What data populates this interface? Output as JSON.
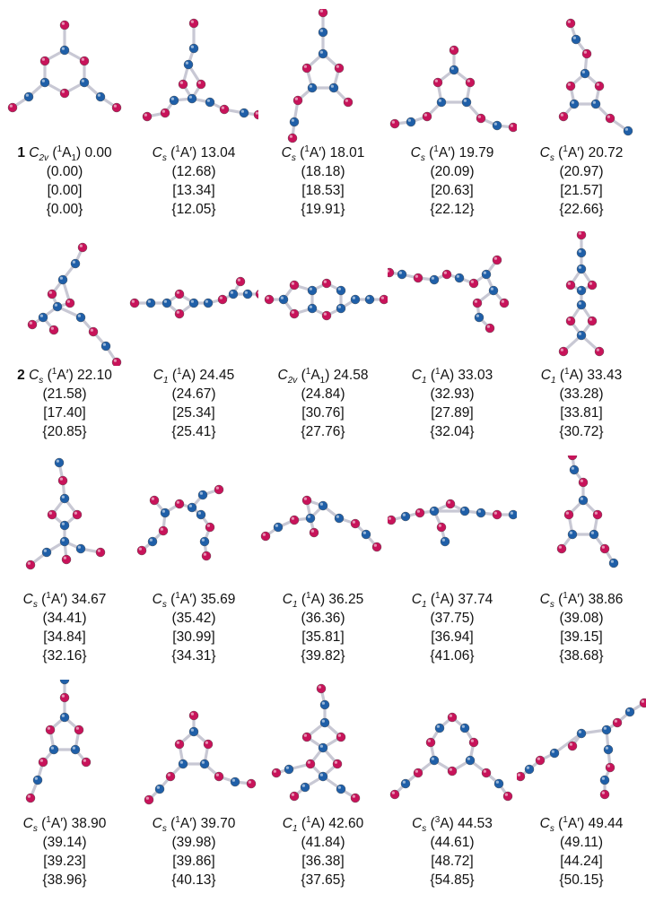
{
  "figure": {
    "colors": {
      "oxygen": "#c8135a",
      "carbon": "#1f5fa8",
      "bond": "#c8c8d4"
    },
    "isomers": [
      {
        "id": "1",
        "pg": "C",
        "pgsub": "2v",
        "state": "1A1",
        "energy": "0.00",
        "e2": "(0.00)",
        "e3": "[0.00]",
        "e4": "{0.00}",
        "shape": "D3h-ring"
      },
      {
        "id": "",
        "pg": "C",
        "pgsub": "s",
        "state": "1A'",
        "energy": "13.04",
        "e2": "(12.68)",
        "e3": "[13.34]",
        "e4": "{12.05}",
        "shape": "cage-bicyclic"
      },
      {
        "id": "",
        "pg": "C",
        "pgsub": "s",
        "state": "1A'",
        "energy": "18.01",
        "e2": "(18.18)",
        "e3": "[18.53]",
        "e4": "{19.91}",
        "shape": "5ring-CO-chain"
      },
      {
        "id": "",
        "pg": "C",
        "pgsub": "s",
        "state": "1A'",
        "energy": "19.79",
        "e2": "(20.09)",
        "e3": "[20.63]",
        "e4": "{22.12}",
        "shape": "5ring-CO"
      },
      {
        "id": "",
        "pg": "C",
        "pgsub": "s",
        "state": "1A'",
        "energy": "20.72",
        "e2": "(20.97)",
        "e3": "[21.57]",
        "e4": "{22.66}",
        "shape": "5ring-chain"
      },
      {
        "id": "2",
        "pg": "C",
        "pgsub": "s",
        "state": "1A'",
        "energy": "22.10",
        "e2": "(21.58)",
        "e3": "[17.40]",
        "e4": "{20.85}",
        "shape": "branched"
      },
      {
        "id": "",
        "pg": "C",
        "pgsub": "1",
        "state": "1A",
        "energy": "24.45",
        "e2": "(24.67)",
        "e3": "[25.34]",
        "e4": "{25.41}",
        "shape": "4ring-linear"
      },
      {
        "id": "",
        "pg": "C",
        "pgsub": "2v",
        "state": "1A1",
        "energy": "24.58",
        "e2": "(24.84)",
        "e3": "[30.76]",
        "e4": "{27.76}",
        "shape": "bicyclic-linear"
      },
      {
        "id": "",
        "pg": "C",
        "pgsub": "1",
        "state": "1A",
        "energy": "33.03",
        "e2": "(32.93)",
        "e3": "[27.89]",
        "e4": "{32.04}",
        "shape": "chain-branched"
      },
      {
        "id": "",
        "pg": "C",
        "pgsub": "1",
        "state": "1A",
        "energy": "33.43",
        "e2": "(33.28)",
        "e3": "[33.81]",
        "e4": "{30.72}",
        "shape": "vertical-cage"
      },
      {
        "id": "",
        "pg": "C",
        "pgsub": "s",
        "state": "1A'",
        "energy": "34.67",
        "e2": "(34.41)",
        "e3": "[34.84]",
        "e4": "{32.16}",
        "shape": "vertical-cage2"
      },
      {
        "id": "",
        "pg": "C",
        "pgsub": "s",
        "state": "1A'",
        "energy": "35.69",
        "e2": "(35.42)",
        "e3": "[30.99]",
        "e4": "{34.31}",
        "shape": "open-chain"
      },
      {
        "id": "",
        "pg": "C",
        "pgsub": "1",
        "state": "1A",
        "energy": "36.25",
        "e2": "(36.36)",
        "e3": "[35.81]",
        "e4": "{39.82}",
        "shape": "3ring-chain"
      },
      {
        "id": "",
        "pg": "C",
        "pgsub": "1",
        "state": "1A",
        "energy": "37.74",
        "e2": "(37.75)",
        "e3": "[36.94]",
        "e4": "{41.06}",
        "shape": "3ring-chain2"
      },
      {
        "id": "",
        "pg": "C",
        "pgsub": "s",
        "state": "1A'",
        "energy": "38.86",
        "e2": "(39.08)",
        "e3": "[39.15]",
        "e4": "{38.68}",
        "shape": "5ring-vertical"
      },
      {
        "id": "",
        "pg": "C",
        "pgsub": "s",
        "state": "1A'",
        "energy": "38.90",
        "e2": "(39.14)",
        "e3": "[39.23]",
        "e4": "{38.96}",
        "shape": "5ring-vertical2"
      },
      {
        "id": "",
        "pg": "C",
        "pgsub": "s",
        "state": "1A'",
        "energy": "39.70",
        "e2": "(39.98)",
        "e3": "[39.86]",
        "e4": "{40.13}",
        "shape": "5ring-side"
      },
      {
        "id": "",
        "pg": "C",
        "pgsub": "1",
        "state": "1A",
        "energy": "42.60",
        "e2": "(41.84)",
        "e3": "[36.38]",
        "e4": "{37.65}",
        "shape": "star-branched"
      },
      {
        "id": "",
        "pg": "C",
        "pgsub": "s",
        "state": "3A",
        "energy": "44.53",
        "e2": "(44.61)",
        "e3": "[48.72]",
        "e4": "{54.85}",
        "shape": "6ring-open"
      },
      {
        "id": "",
        "pg": "C",
        "pgsub": "s",
        "state": "1A'",
        "energy": "49.44",
        "e2": "(49.11)",
        "e3": "[44.24]",
        "e4": "{50.15}",
        "shape": "ethylene-branched"
      }
    ]
  }
}
